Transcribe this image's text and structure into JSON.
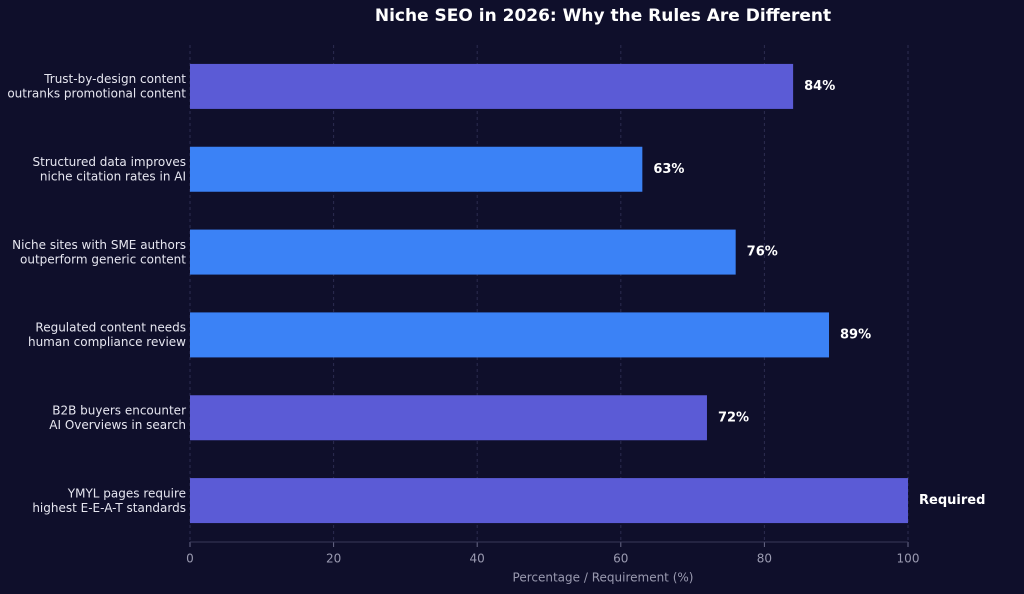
{
  "chart_data": {
    "type": "bar",
    "orientation": "horizontal",
    "title": "Niche SEO in 2026: Why the Rules Are Different",
    "xlabel": "Percentage / Requirement (%)",
    "categories": [
      "Trust-by-design content\noutranks promotional content",
      "Structured data improves\nniche citation rates in AI",
      "Niche sites with SME authors\noutperform generic content",
      "Regulated content needs\nhuman compliance review",
      "B2B buyers encounter\nAI Overviews in search",
      "YMYL pages require\nhighest E-E-A-T standards"
    ],
    "values": [
      84,
      63,
      76,
      89,
      72,
      100
    ],
    "value_labels": [
      "84%",
      "63%",
      "76%",
      "89%",
      "72%",
      "Required"
    ],
    "colors": [
      "#5b5bd6",
      "#3b82f6",
      "#3b82f6",
      "#3b82f6",
      "#5b5bd6",
      "#5b5bd6"
    ],
    "xlim": [
      0,
      100
    ],
    "xticks": [
      0,
      20,
      40,
      60,
      80,
      100
    ],
    "grid": true
  }
}
